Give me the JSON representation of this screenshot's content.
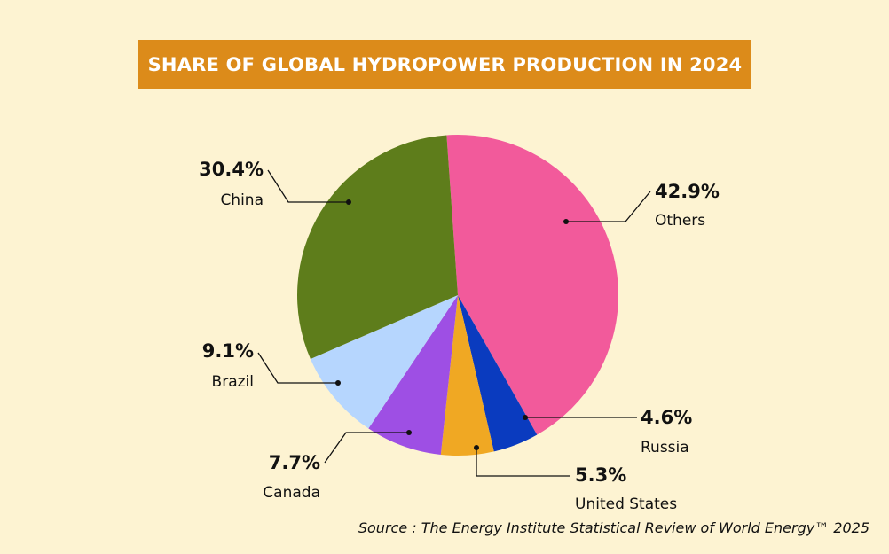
{
  "chart_data": {
    "type": "pie",
    "title": "SHARE OF GLOBAL HYDROPOWER PRODUCTION IN 2024",
    "categories": [
      "Others",
      "Russia",
      "United States",
      "Canada",
      "Brazil",
      "China"
    ],
    "values": [
      42.9,
      4.6,
      5.3,
      7.7,
      9.1,
      30.4
    ],
    "value_labels": [
      "42.9%",
      "4.6%",
      "5.3%",
      "7.7%",
      "9.1%",
      "30.4%"
    ],
    "colors": [
      "#f25a9b",
      "#0a3bbf",
      "#f0a823",
      "#9e4fe4",
      "#b6d6fe",
      "#5e7d1b"
    ],
    "start_angle_deg": -4,
    "direction": "clockwise",
    "legend": "none",
    "source": "Source : The Energy Institute Statistical Review of World Energy™ 2025"
  },
  "style": {
    "background": "#fdf3d2",
    "title_bar": "#dc8b1a",
    "leader_color": "#111111"
  }
}
